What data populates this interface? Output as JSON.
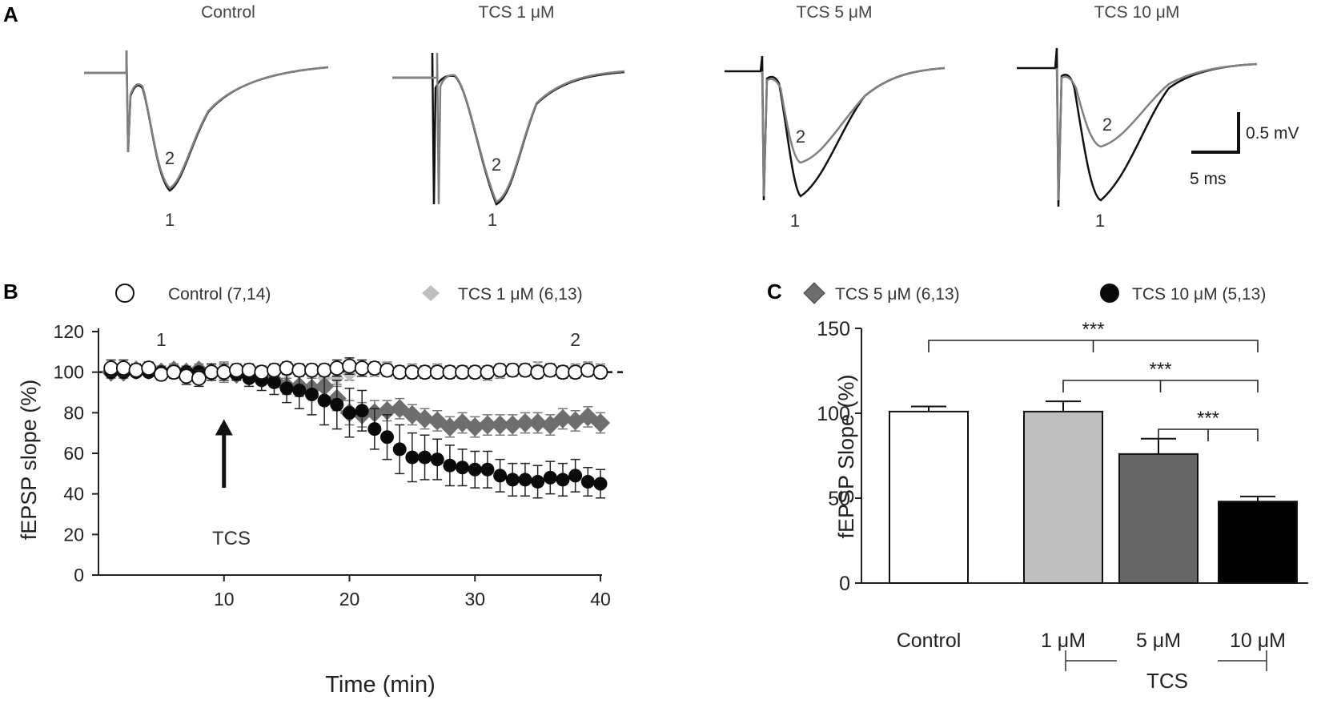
{
  "panels": {
    "a": "A",
    "b": "B",
    "c": "C"
  },
  "traces": {
    "titles": [
      "Control",
      "TCS 1 μM",
      "TCS 5 μM",
      "TCS 10 μM"
    ],
    "label_1": "1",
    "label_2": "2",
    "scale_v": "0.5 mV",
    "scale_t": "5 ms",
    "colors": {
      "baseline": "#111111",
      "treated": "#808080"
    }
  },
  "legend": {
    "control": "Control (7,14)",
    "tcs1": "TCS 1 μM (6,13)",
    "tcs5": "TCS 5 μM (6,13)",
    "tcs10": "TCS 10 μM (5,13)"
  },
  "chart_data": [
    {
      "type": "scatter",
      "title": "",
      "xlabel": "Time (min)",
      "ylabel": "fEPSP slope (%)",
      "xlim": [
        0,
        40
      ],
      "ylim": [
        0,
        120
      ],
      "xticks": [
        10,
        20,
        30,
        40
      ],
      "yticks": [
        0,
        20,
        40,
        60,
        80,
        100,
        120
      ],
      "reference_line": 100,
      "markers": {
        "1": 5,
        "2": 38
      },
      "marker_labels": {
        "1": "1",
        "2": "2"
      },
      "annotation": {
        "text": "TCS",
        "x": 10,
        "arrow_from": 43,
        "arrow_to": 76
      },
      "x": [
        1,
        2,
        3,
        4,
        5,
        6,
        7,
        8,
        9,
        10,
        11,
        12,
        13,
        14,
        15,
        16,
        17,
        18,
        19,
        20,
        21,
        22,
        23,
        24,
        25,
        26,
        27,
        28,
        29,
        30,
        31,
        32,
        33,
        34,
        35,
        36,
        37,
        38,
        39,
        40
      ],
      "series": [
        {
          "name": "Control (7,14)",
          "marker": "open-circle",
          "color": "#ffffff",
          "values": [
            102,
            102,
            101,
            102,
            99,
            100,
            98,
            97,
            100,
            100,
            101,
            101,
            100,
            101,
            102,
            101,
            101,
            101,
            102,
            103,
            102,
            102,
            101,
            100,
            100,
            100,
            100,
            100,
            100,
            100,
            100,
            101,
            101,
            101,
            100,
            101,
            100,
            100,
            101,
            100
          ],
          "errors": [
            4,
            4,
            3,
            3,
            3,
            3,
            4,
            4,
            4,
            4,
            3,
            3,
            3,
            3,
            3,
            3,
            3,
            3,
            4,
            4,
            4,
            3,
            3,
            3,
            3,
            3,
            3,
            3,
            3,
            3,
            3,
            3,
            3,
            3,
            3,
            3,
            3,
            3,
            3,
            3
          ]
        },
        {
          "name": "TCS 1 μM (6,13)",
          "marker": "diamond",
          "color": "#bfbfbf",
          "values": [
            101,
            100,
            101,
            101,
            100,
            101,
            100,
            99,
            101,
            100,
            101,
            100,
            100,
            101,
            100,
            101,
            100,
            97,
            97,
            99,
            101,
            101,
            102,
            100,
            101,
            100,
            101,
            100,
            100,
            100,
            99,
            100,
            101,
            101,
            102,
            101,
            100,
            101,
            102,
            101
          ],
          "errors": [
            3,
            3,
            3,
            3,
            3,
            3,
            3,
            3,
            3,
            5,
            3,
            3,
            3,
            3,
            3,
            3,
            3,
            3,
            3,
            3,
            3,
            3,
            3,
            3,
            3,
            3,
            3,
            3,
            3,
            3,
            3,
            3,
            3,
            3,
            3,
            3,
            3,
            3,
            3,
            3
          ]
        },
        {
          "name": "TCS 5 μM (6,13)",
          "marker": "diamond",
          "color": "#6e6e6e",
          "values": [
            100,
            100,
            101,
            101,
            100,
            101,
            100,
            101,
            100,
            100,
            99,
            99,
            97,
            96,
            93,
            93,
            92,
            93,
            87,
            80,
            79,
            80,
            81,
            82,
            79,
            77,
            76,
            73,
            75,
            73,
            74,
            74,
            74,
            75,
            75,
            74,
            77,
            76,
            78,
            75
          ],
          "errors": [
            3,
            3,
            3,
            3,
            3,
            3,
            3,
            3,
            3,
            3,
            3,
            3,
            3,
            3,
            4,
            5,
            5,
            5,
            6,
            6,
            6,
            6,
            5,
            5,
            5,
            5,
            5,
            5,
            5,
            5,
            5,
            5,
            5,
            5,
            5,
            5,
            5,
            5,
            5,
            5
          ]
        },
        {
          "name": "TCS 10 μM (5,13)",
          "marker": "filled-circle",
          "color": "#0a0a0a",
          "values": [
            100,
            100,
            100,
            100,
            100,
            100,
            100,
            100,
            100,
            100,
            99,
            97,
            96,
            95,
            92,
            91,
            89,
            86,
            84,
            80,
            81,
            72,
            68,
            62,
            58,
            58,
            57,
            54,
            53,
            52,
            52,
            49,
            47,
            47,
            46,
            48,
            47,
            49,
            46,
            45
          ],
          "errors": [
            2,
            2,
            2,
            2,
            2,
            2,
            2,
            2,
            2,
            2,
            3,
            4,
            5,
            6,
            7,
            9,
            10,
            12,
            12,
            12,
            10,
            10,
            11,
            12,
            12,
            11,
            10,
            10,
            9,
            9,
            9,
            8,
            8,
            8,
            8,
            8,
            8,
            8,
            7,
            7
          ]
        }
      ]
    },
    {
      "type": "bar",
      "title": "",
      "xlabel": "TCS",
      "ylabel": "fEPSP Slope (%)",
      "ylim": [
        0,
        150
      ],
      "yticks": [
        0,
        50,
        100,
        150
      ],
      "categories": [
        "Control",
        "1 μM",
        "5 μM",
        "10 μM"
      ],
      "values": [
        101,
        101,
        76,
        48
      ],
      "errors": [
        3,
        6,
        9,
        3
      ],
      "colors": [
        "#ffffff",
        "#bfbfbf",
        "#666666",
        "#000000"
      ],
      "significance": [
        {
          "from": 0,
          "to": 3,
          "text": "***"
        },
        {
          "from": 1,
          "to": 3,
          "text": "***"
        },
        {
          "from": 2,
          "to": 3,
          "text": "***"
        }
      ]
    }
  ]
}
